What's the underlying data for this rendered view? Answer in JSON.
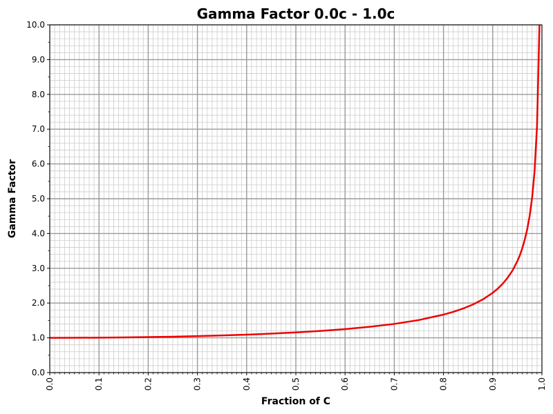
{
  "chart_data": {
    "type": "line",
    "title": "Gamma Factor 0.0c - 1.0c",
    "xlabel": "Fraction of C",
    "ylabel": "Gamma Factor",
    "xlim": [
      0.0,
      1.0
    ],
    "ylim": [
      0.0,
      10.0
    ],
    "x_tick_labels": [
      "0.0",
      "0.1",
      "0.2",
      "0.3",
      "0.4",
      "0.5",
      "0.6",
      "0.7",
      "0.8",
      "0.9",
      "1.0"
    ],
    "y_tick_labels": [
      "0.0",
      "1.0",
      "2.0",
      "3.0",
      "4.0",
      "5.0",
      "6.0",
      "7.0",
      "8.0",
      "9.0",
      "10.0"
    ],
    "grid": "major and minor",
    "series": [
      {
        "color": "#ee0000",
        "x": [
          0.0,
          0.05,
          0.1,
          0.15,
          0.2,
          0.25,
          0.3,
          0.35,
          0.4,
          0.45,
          0.5,
          0.55,
          0.6,
          0.65,
          0.7,
          0.75,
          0.8,
          0.82,
          0.84,
          0.86,
          0.88,
          0.9,
          0.91,
          0.92,
          0.93,
          0.94,
          0.95,
          0.955,
          0.96,
          0.965,
          0.97,
          0.975,
          0.98,
          0.985,
          0.99,
          0.995
        ],
        "y": [
          1.0,
          1.001,
          1.005,
          1.011,
          1.021,
          1.033,
          1.048,
          1.068,
          1.091,
          1.12,
          1.155,
          1.197,
          1.25,
          1.316,
          1.4,
          1.512,
          1.667,
          1.747,
          1.843,
          1.96,
          2.105,
          2.294,
          2.411,
          2.552,
          2.721,
          2.931,
          3.203,
          3.369,
          3.571,
          3.818,
          4.113,
          4.502,
          5.025,
          5.783,
          7.089,
          10.01
        ]
      }
    ]
  },
  "colors": {
    "line": "#ee0000",
    "major_grid": "#999999",
    "minor_grid": "#cccccc",
    "axes": "#000000",
    "background": "#ffffff"
  }
}
